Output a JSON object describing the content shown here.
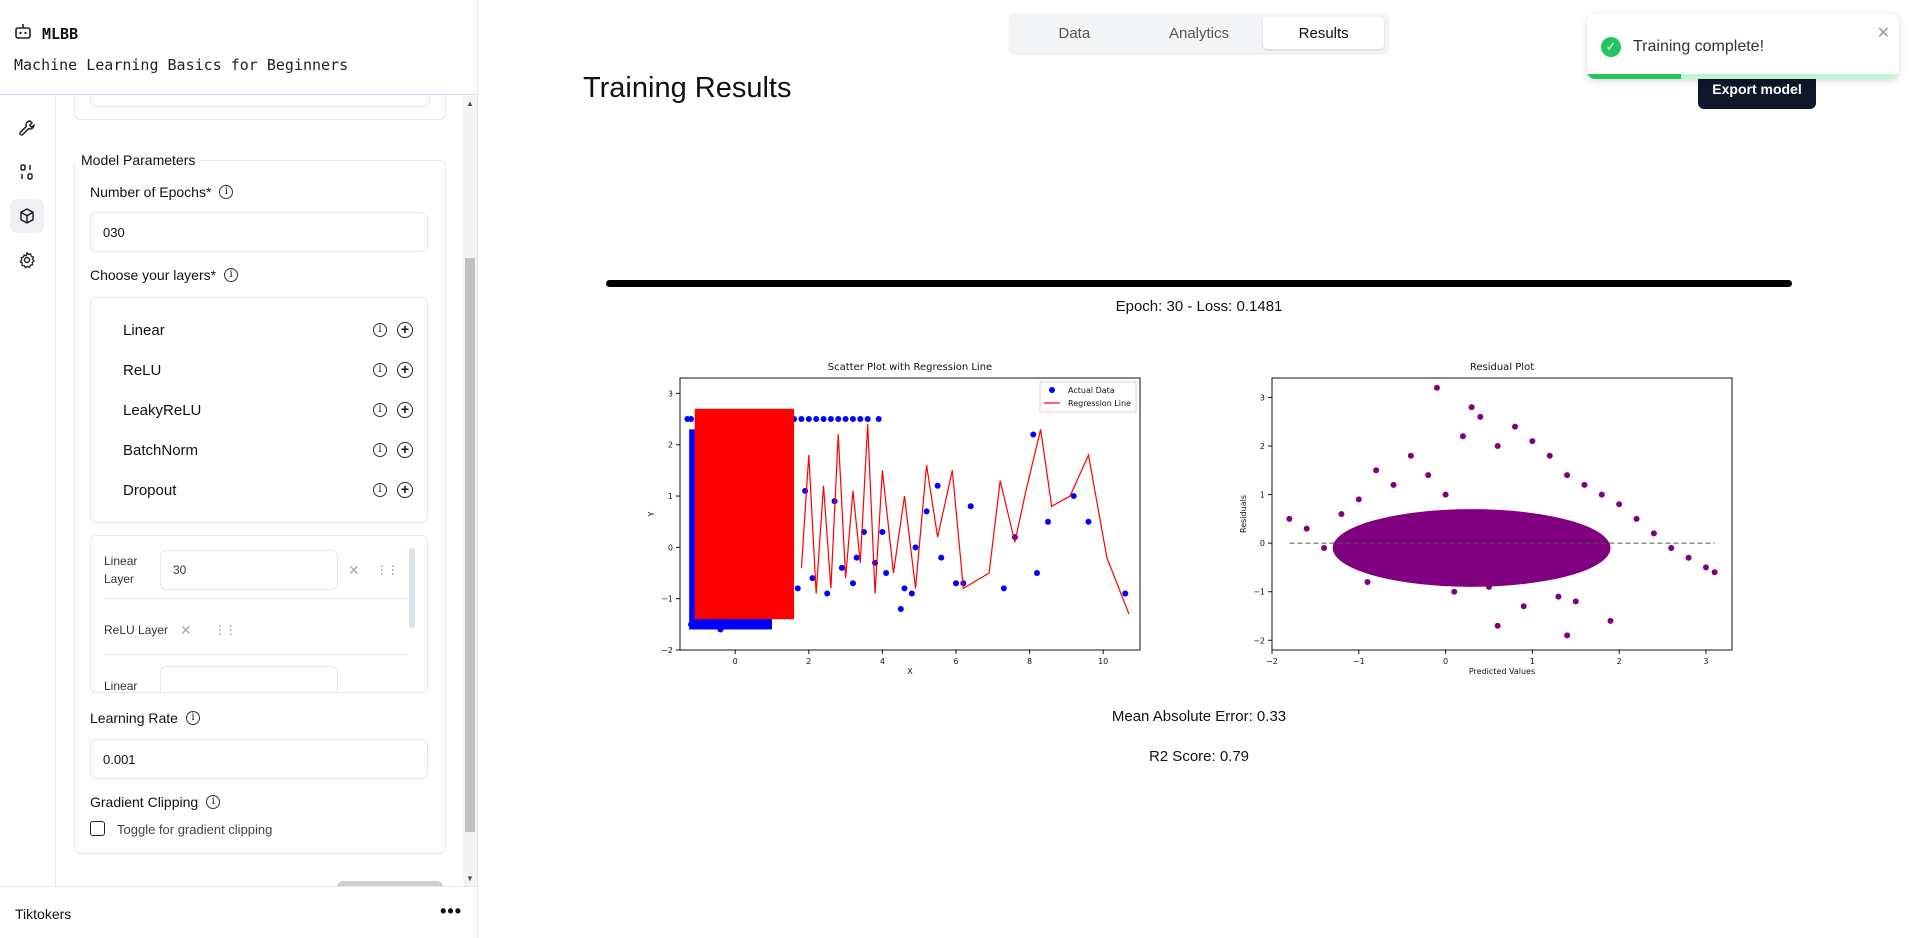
{
  "brand": {
    "name": "MLBB",
    "subtitle": "Machine Learning Basics for Beginners"
  },
  "rail": {
    "icons": [
      "wrench-icon",
      "binary-icon",
      "cube-icon",
      "gear-icon"
    ],
    "active_index": 2
  },
  "model_params": {
    "legend": "Model Parameters",
    "epochs_label": "Number of Epochs*",
    "epochs_value": "030",
    "layers_label": "Choose your layers*",
    "layer_options": [
      "Linear",
      "ReLU",
      "LeakyReLU",
      "BatchNorm",
      "Dropout"
    ],
    "stack": {
      "linear_label_1": "Linear",
      "linear_label_2": "Layer",
      "linear_value": "30",
      "relu_label": "ReLU Layer",
      "linear_partial": "Linear"
    },
    "lr_label": "Learning Rate",
    "lr_value": "0.001",
    "clip_label": "Gradient Clipping",
    "clip_toggle_label": "Toggle for gradient clipping"
  },
  "footer": {
    "name": "Tiktokers",
    "menu": "•••"
  },
  "tabs": [
    {
      "label": "Data",
      "active": false
    },
    {
      "label": "Analytics",
      "active": false
    },
    {
      "label": "Results",
      "active": true
    }
  ],
  "page": {
    "title": "Training Results",
    "export_label": "Export model"
  },
  "progress": {
    "fraction": 1.0,
    "text": "Epoch: 30 - Loss: 0.1481"
  },
  "metrics": {
    "mae": "Mean Absolute Error: 0.33",
    "r2": "R2 Score: 0.79"
  },
  "toast": {
    "text": "Training complete!",
    "progress_fraction": 0.3,
    "colors": {
      "accent": "#22c55e"
    }
  },
  "chart_data": [
    {
      "type": "scatter",
      "title": "Scatter Plot with Regression Line",
      "xlabel": "X",
      "ylabel": "Y",
      "xlim": [
        -1.5,
        11
      ],
      "ylim": [
        -2,
        3.3
      ],
      "xticks": [
        0,
        2,
        4,
        6,
        8,
        10
      ],
      "yticks": [
        -2,
        -1,
        0,
        1,
        2,
        3
      ],
      "legend": {
        "placement": "top-right",
        "entries": [
          "Actual Data",
          "Regression Line"
        ]
      },
      "series": [
        {
          "name": "Actual Data",
          "color": "#0000ff",
          "x": [
            -1.3,
            -1.2,
            -1.0,
            -0.9,
            -0.8,
            -0.6,
            -0.4,
            -0.2,
            0.0,
            0.2,
            0.4,
            0.6,
            0.8,
            1.0,
            1.2,
            1.4,
            1.6,
            1.8,
            2.0,
            2.2,
            2.4,
            2.6,
            2.8,
            3.0,
            3.2,
            3.4,
            3.6,
            3.9,
            -1.2,
            -0.8,
            -0.4,
            0.1,
            0.5,
            0.9,
            1.3,
            1.7,
            2.1,
            2.5,
            2.9,
            3.2,
            3.5,
            3.8,
            4.1,
            4.5,
            4.8,
            5.2,
            5.6,
            6.0,
            6.4,
            7.3,
            7.6,
            8.2,
            8.5,
            9.2,
            9.6,
            10.6,
            -1.1,
            -0.5,
            0.3,
            1.1,
            1.9,
            2.7,
            3.3,
            4.0,
            4.6,
            4.9,
            5.5,
            6.2,
            8.1
          ],
          "y": [
            2.5,
            2.5,
            2.5,
            2.5,
            2.5,
            2.5,
            2.5,
            2.5,
            2.5,
            2.5,
            2.5,
            2.5,
            2.5,
            2.5,
            2.5,
            2.5,
            2.5,
            2.5,
            2.5,
            2.5,
            2.5,
            2.5,
            2.5,
            2.5,
            2.5,
            2.5,
            2.5,
            2.5,
            -1.5,
            -1.4,
            -1.6,
            -1.3,
            -1.2,
            -1.1,
            -0.9,
            -0.8,
            -0.6,
            -0.9,
            -0.4,
            -0.7,
            0.3,
            -0.3,
            -0.5,
            -1.2,
            -0.9,
            0.7,
            -0.2,
            -0.7,
            0.8,
            -0.8,
            0.2,
            -0.5,
            0.5,
            1.0,
            0.5,
            -0.9,
            1.2,
            0.8,
            -0.3,
            0.4,
            1.1,
            0.9,
            -0.2,
            0.3,
            -0.8,
            0.0,
            1.2,
            -0.7,
            2.2
          ]
        },
        {
          "name": "Regression Line",
          "color": "#ff0000",
          "x": [
            1.8,
            2.0,
            2.2,
            2.4,
            2.6,
            2.8,
            3.0,
            3.2,
            3.4,
            3.6,
            3.8,
            4.0,
            4.3,
            4.6,
            4.9,
            5.2,
            5.5,
            5.9,
            6.2,
            6.9,
            7.2,
            7.6,
            7.9,
            8.3,
            8.6,
            9.1,
            9.6,
            10.1,
            10.7
          ],
          "y": [
            -0.4,
            1.8,
            -0.9,
            1.2,
            -0.8,
            2.2,
            -0.6,
            1.1,
            -0.3,
            2.4,
            -0.9,
            1.5,
            -0.5,
            1.0,
            -0.8,
            1.6,
            0.2,
            1.5,
            -0.8,
            -0.5,
            1.3,
            0.1,
            1.1,
            2.3,
            0.8,
            1.0,
            1.8,
            -0.2,
            -1.3
          ]
        }
      ]
    },
    {
      "type": "scatter",
      "title": "Residual Plot",
      "xlabel": "Predicted Values",
      "ylabel": "Residuals",
      "xlim": [
        -2,
        3.3
      ],
      "ylim": [
        -2.2,
        3.4
      ],
      "xticks": [
        -2,
        -1,
        0,
        1,
        2,
        3
      ],
      "yticks": [
        -2,
        -1,
        0,
        1,
        2,
        3
      ],
      "reference_line": 0,
      "series": [
        {
          "name": "",
          "color": "#800080",
          "x": [
            -1.8,
            -1.6,
            -1.4,
            -1.2,
            -1.0,
            -0.8,
            -0.6,
            -0.4,
            -0.2,
            0.0,
            0.2,
            0.4,
            0.6,
            0.8,
            1.0,
            1.2,
            1.4,
            1.6,
            1.8,
            2.0,
            2.2,
            2.4,
            2.6,
            2.8,
            3.0,
            3.1,
            -0.1,
            0.3,
            0.6,
            0.9,
            1.4,
            1.5,
            1.9,
            -0.5,
            -0.9,
            0.1,
            0.5,
            1.1,
            1.3,
            0.0
          ],
          "y": [
            0.5,
            0.3,
            -0.1,
            0.6,
            0.9,
            1.5,
            1.2,
            1.8,
            1.4,
            1.0,
            2.2,
            2.6,
            2.0,
            2.4,
            2.1,
            1.8,
            1.4,
            1.2,
            1.0,
            0.8,
            0.5,
            0.2,
            -0.1,
            -0.3,
            -0.5,
            -0.6,
            3.2,
            2.8,
            -1.7,
            -1.3,
            -1.9,
            -1.2,
            -1.6,
            -0.6,
            -0.8,
            -1.0,
            -0.9,
            -0.7,
            -1.1,
            -0.5
          ]
        }
      ]
    }
  ]
}
